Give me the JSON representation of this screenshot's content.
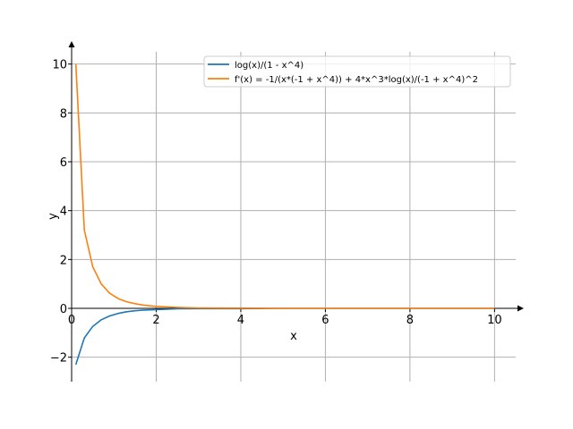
{
  "chart_data": {
    "type": "line",
    "title": "",
    "xlabel": "x",
    "ylabel": "y",
    "xlim": [
      0,
      10.5
    ],
    "ylim": [
      -3,
      10.5
    ],
    "xticks": [
      0,
      2,
      4,
      6,
      8,
      10
    ],
    "yticks": [
      -2,
      0,
      2,
      4,
      6,
      8,
      10
    ],
    "grid": true,
    "legend_position": "top-right",
    "series": [
      {
        "name": "log(x)/(1 - x^4)",
        "color": "#1f77b4",
        "x": [
          0.1,
          0.3,
          0.5,
          0.7,
          0.9,
          1.1,
          1.3,
          1.5,
          1.7,
          2,
          2.5,
          3,
          4,
          5,
          6,
          7,
          8,
          9,
          10
        ],
        "y": [
          -2.3,
          -1.21,
          -0.74,
          -0.47,
          -0.31,
          -0.21,
          -0.14,
          -0.1,
          -0.07,
          -0.05,
          -0.02,
          -0.01,
          -0.01,
          0,
          0,
          0,
          0,
          0,
          0
        ]
      },
      {
        "name": "f'(x) = -1/(x*(-1 + x^4)) + 4*x^3*log(x)/(-1 + x^4)^2",
        "color": "#ff7f0e",
        "x": [
          0.1,
          0.3,
          0.5,
          0.7,
          0.9,
          1.1,
          1.3,
          1.5,
          1.7,
          2,
          2.5,
          3,
          4,
          5,
          6,
          7,
          8,
          9,
          10
        ],
        "y": [
          10.0,
          3.2,
          1.7,
          1.0,
          0.62,
          0.4,
          0.27,
          0.19,
          0.13,
          0.08,
          0.04,
          0.02,
          0.01,
          0,
          0,
          0,
          0,
          0,
          0
        ]
      }
    ]
  }
}
